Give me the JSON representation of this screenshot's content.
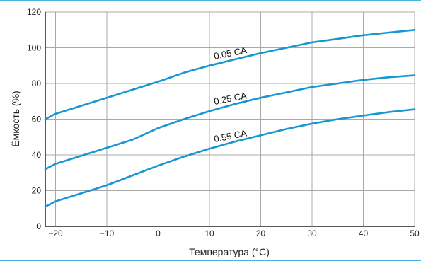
{
  "colors": {
    "accent": "#1796d2",
    "rule": "#4fb3dd",
    "grid": "#a8a8a8",
    "axis": "#222222"
  },
  "chart_data": {
    "type": "line",
    "xlabel": "Температура (°C)",
    "ylabel": "Ёмкость (%)",
    "xlim": [
      -22,
      50
    ],
    "ylim": [
      0,
      120
    ],
    "x_ticks": [
      -20,
      -10,
      0,
      10,
      20,
      30,
      40,
      50
    ],
    "x_tick_labels": [
      "−20",
      "−10",
      "0",
      "10",
      "20",
      "30",
      "40",
      "50"
    ],
    "y_ticks": [
      0,
      20,
      40,
      60,
      80,
      100,
      120
    ],
    "y_tick_labels": [
      "0",
      "20",
      "40",
      "60",
      "80",
      "100",
      "120"
    ],
    "grid": true,
    "series": [
      {
        "name": "0.05 CA",
        "x": [
          -22,
          -20,
          -15,
          -10,
          -5,
          0,
          5,
          10,
          15,
          20,
          25,
          30,
          35,
          40,
          45,
          50
        ],
        "y": [
          60,
          63,
          67.5,
          72,
          76.5,
          81,
          86,
          90,
          93.5,
          97,
          100,
          103,
          105,
          107,
          108.5,
          110
        ]
      },
      {
        "name": "0.25 CA",
        "x": [
          -22,
          -20,
          -15,
          -10,
          -5,
          0,
          5,
          10,
          15,
          20,
          25,
          30,
          35,
          40,
          45,
          50
        ],
        "y": [
          32,
          35,
          39.5,
          44,
          48.5,
          55,
          60,
          64.5,
          68.5,
          72,
          75,
          78,
          80,
          82,
          83.5,
          84.5
        ]
      },
      {
        "name": "0.55 CA",
        "x": [
          -22,
          -20,
          -15,
          -10,
          -5,
          0,
          5,
          10,
          15,
          20,
          25,
          30,
          35,
          40,
          45,
          50
        ],
        "y": [
          11,
          14,
          18.5,
          23,
          28.5,
          34,
          39,
          43.5,
          47.5,
          51,
          54.5,
          57.5,
          60,
          62,
          64,
          65.5
        ]
      }
    ]
  }
}
